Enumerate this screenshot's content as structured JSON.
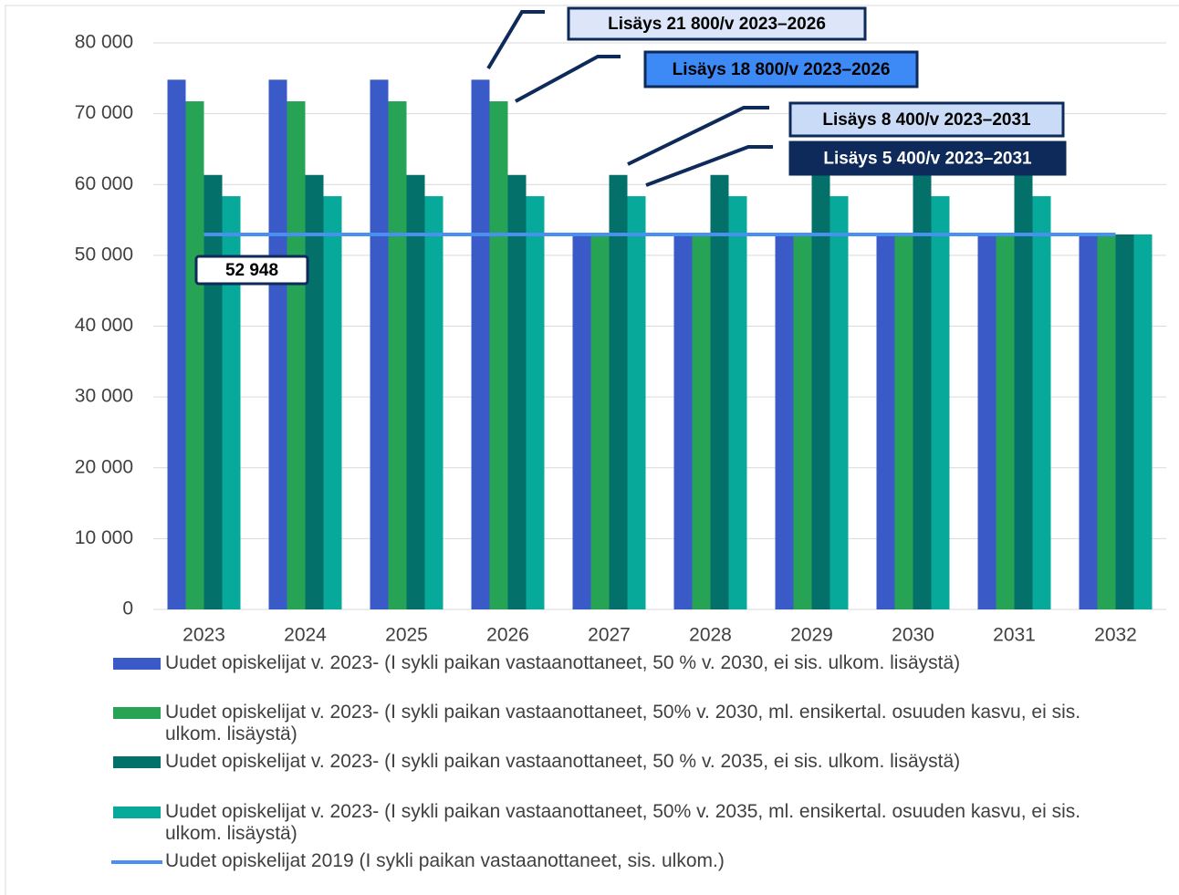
{
  "chart_data": {
    "type": "bar",
    "categories": [
      "2023",
      "2024",
      "2025",
      "2026",
      "2027",
      "2028",
      "2029",
      "2030",
      "2031",
      "2032"
    ],
    "series": [
      {
        "name": "Uudet opiskelijat v. 2023- (I sykli paikan vastaanottaneet, 50 % v. 2030, ei sis. ulkom. lisäystä)",
        "color": "#3a5bc7",
        "values": [
          74800,
          74800,
          74800,
          74800,
          52948,
          52948,
          52948,
          52948,
          52948,
          52948
        ]
      },
      {
        "name": "Uudet opiskelijat v. 2023- (I sykli paikan vastaanottaneet, 50% v. 2030, ml. ensikertal. osuuden kasvu, ei sis. ulkom. lisäystä)",
        "color": "#27a356",
        "values": [
          71750,
          71750,
          71750,
          71750,
          52948,
          52948,
          52948,
          52948,
          52948,
          52948
        ]
      },
      {
        "name": "Uudet opiskelijat v. 2023- (I sykli paikan vastaanottaneet, 50 % v. 2035, ei sis. ulkom. lisäystä)",
        "color": "#03706a",
        "values": [
          61350,
          61350,
          61350,
          61350,
          61350,
          61350,
          61350,
          61350,
          61350,
          52948
        ]
      },
      {
        "name": "Uudet opiskelijat v. 2023- (I sykli paikan vastaanottaneet, 50% v. 2035, ml. ensikertal. osuuden kasvu, ei sis. ulkom. lisäystä)",
        "color": "#06a99a",
        "values": [
          58350,
          58350,
          58350,
          58350,
          58350,
          58350,
          58350,
          58350,
          58350,
          52948
        ]
      },
      {
        "name": "Uudet opiskelijat 2019 (I sykli paikan vastaanottaneet, sis. ulkom.)",
        "color": "#4a90f0",
        "type": "line",
        "values": [
          52948,
          52948,
          52948,
          52948,
          52948,
          52948,
          52948,
          52948,
          52948,
          52948
        ],
        "value_labels": [
          "52 948",
          null,
          null,
          null,
          null,
          null,
          null,
          null,
          null,
          null
        ]
      }
    ],
    "annotations": [
      "Lisäys 21 800/v 2023–2026",
      "Lisäys 18 800/v 2023–2026",
      "Lisäys 8 400/v 2023–2031",
      "Lisäys 5 400/v 2023–2031"
    ],
    "ylim": [
      0,
      80000
    ],
    "yticks": [
      0,
      {
        "value": 10000,
        "label": "10 000"
      },
      {
        "value": 20000,
        "label": "20 000"
      },
      {
        "value": 30000,
        "label": "30 000"
      },
      {
        "value": 40000,
        "label": "40 000"
      },
      {
        "value": 50000,
        "label": "50 000"
      },
      {
        "value": 60000,
        "label": "60 000"
      },
      {
        "value": 70000,
        "label": "70 000"
      },
      {
        "value": 80000,
        "label": "80 000"
      }
    ],
    "grid": true
  }
}
